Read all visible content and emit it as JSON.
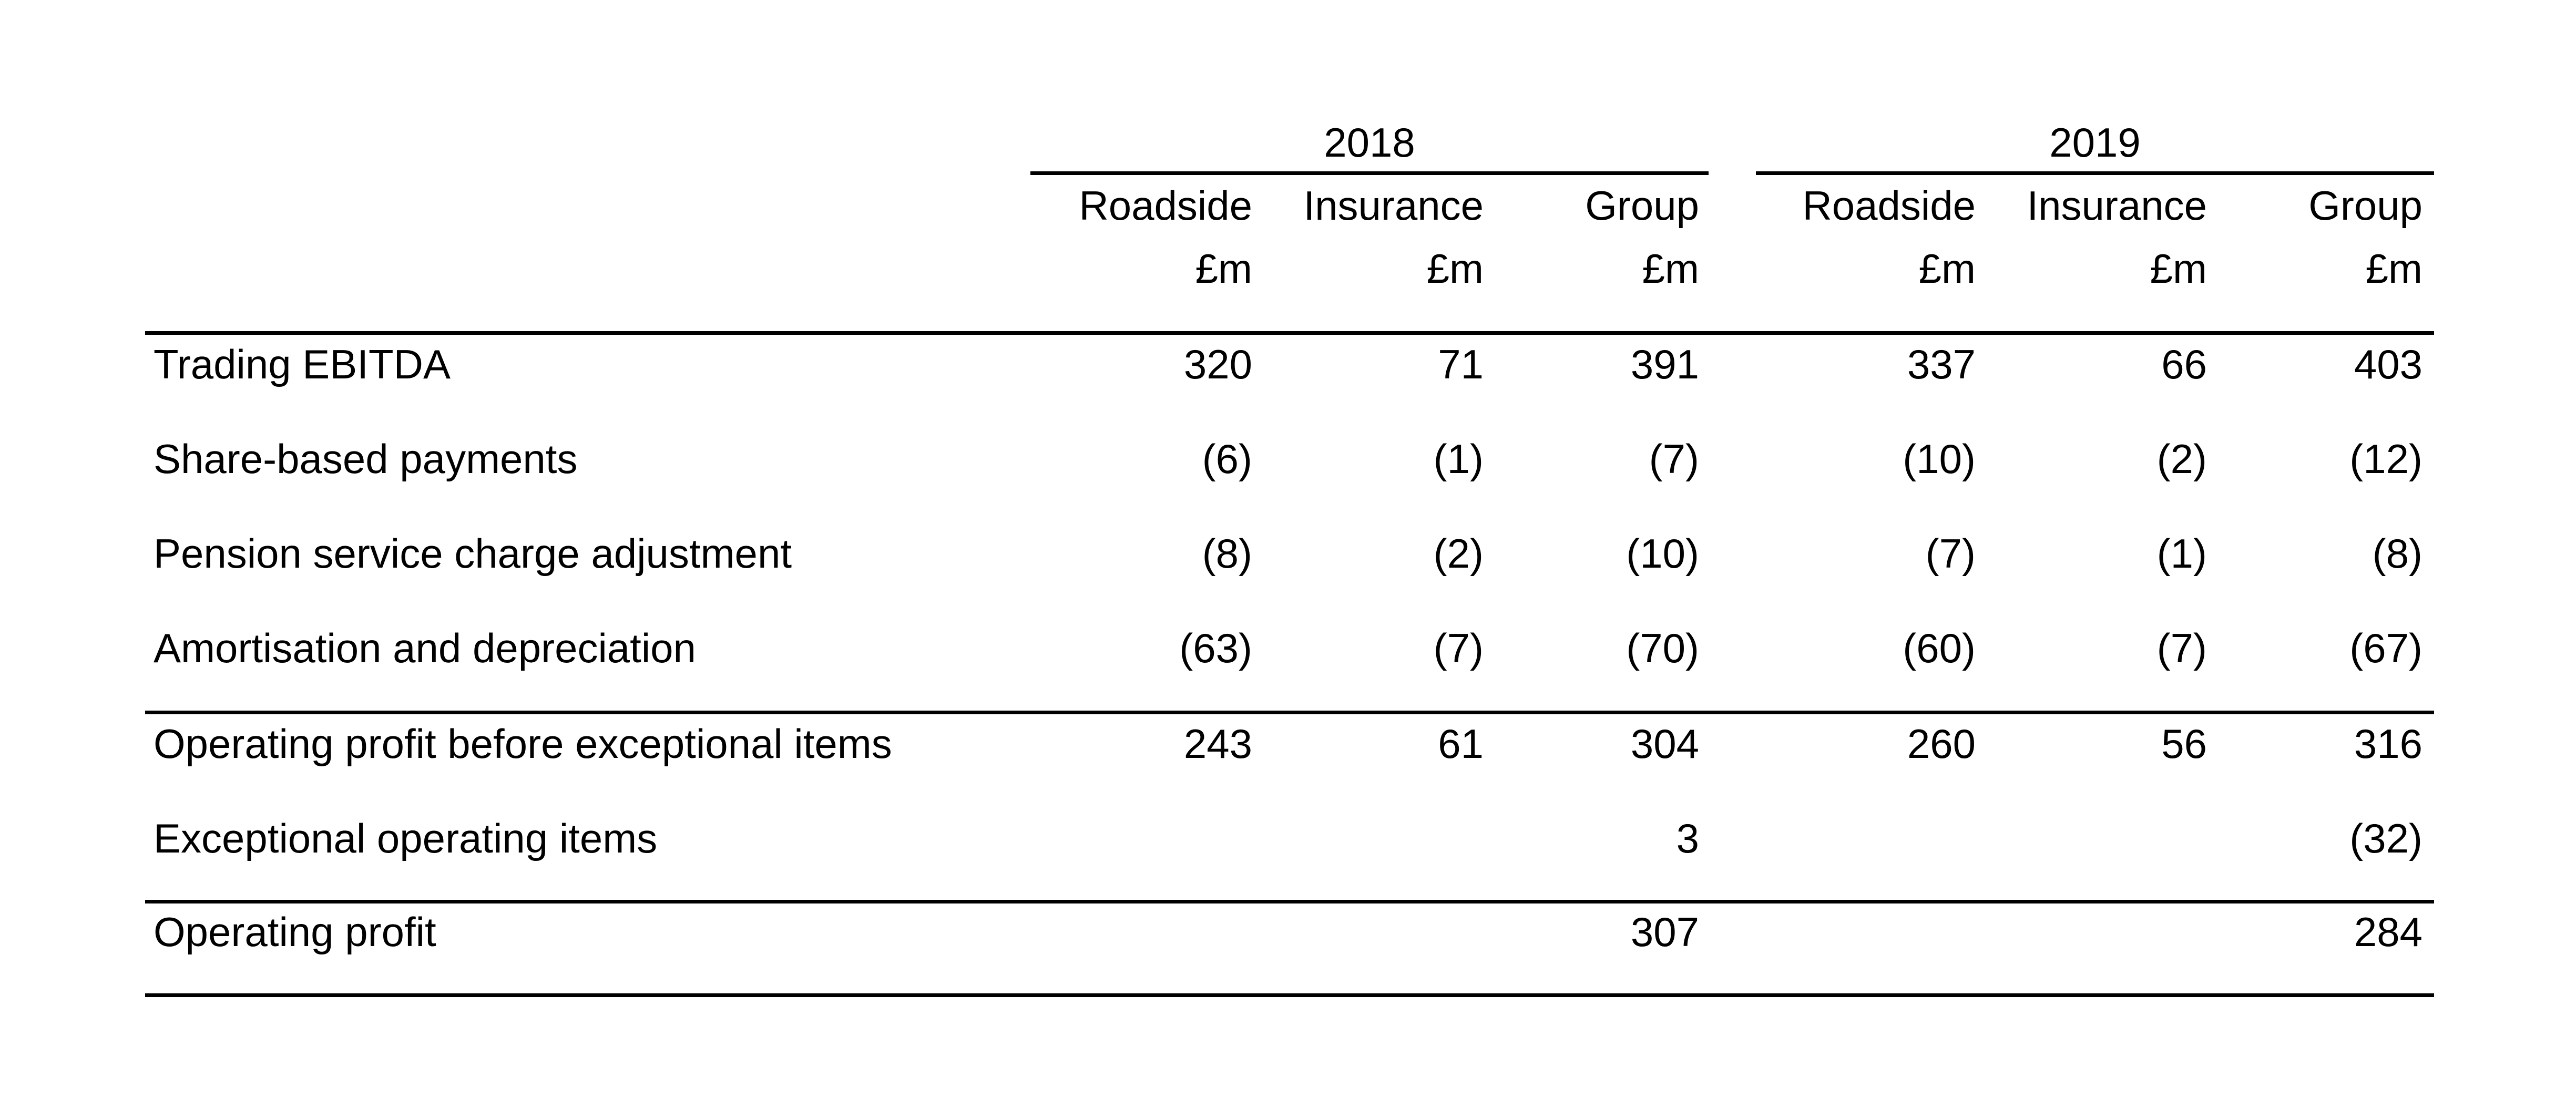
{
  "table": {
    "years": [
      "2018",
      "2019"
    ],
    "segments": [
      "Roadside",
      "Insurance",
      "Group"
    ],
    "unit": "£m",
    "rows": [
      {
        "label": "Trading EBITDA",
        "values": [
          "320",
          "71",
          "391",
          "337",
          "66",
          "403"
        ]
      },
      {
        "label": "Share-based payments",
        "values": [
          "(6)",
          "(1)",
          "(7)",
          "(10)",
          "(2)",
          "(12)"
        ]
      },
      {
        "label": "Pension service charge adjustment",
        "values": [
          "(8)",
          "(2)",
          "(10)",
          "(7)",
          "(1)",
          "(8)"
        ]
      },
      {
        "label": "Amortisation and depreciation",
        "values": [
          "(63)",
          "(7)",
          "(70)",
          "(60)",
          "(7)",
          "(67)"
        ]
      },
      {
        "label": "Operating profit before exceptional items",
        "values": [
          "243",
          "61",
          "304",
          "260",
          "56",
          "316"
        ]
      },
      {
        "label": "Exceptional operating items",
        "values": [
          "",
          "",
          "3",
          "",
          "",
          "(32)"
        ]
      },
      {
        "label": "Operating profit",
        "values": [
          "",
          "",
          "307",
          "",
          "",
          "284"
        ]
      }
    ]
  }
}
